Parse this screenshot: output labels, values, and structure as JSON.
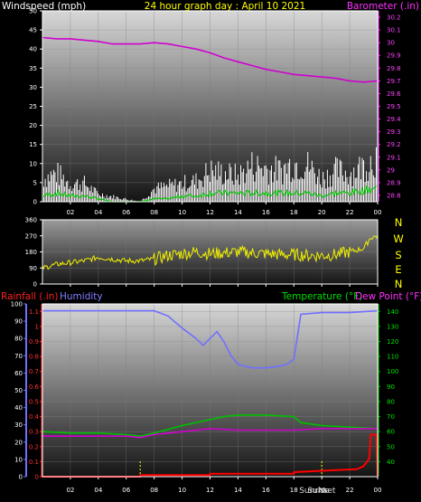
{
  "header": {
    "wind_label": "Windspeed (mph)",
    "title": "24 hour graph day : April 10 2021",
    "baro_label": "Barometer (.in)"
  },
  "lower_header": {
    "rain_label": "Rainfall (.in)",
    "hum_label": "Humidity",
    "temp_label": "Temperature (°F)",
    "dew_label": "Dew Point (°F)"
  },
  "compass": [
    "N",
    "W",
    "S",
    "E",
    "N"
  ],
  "sun_labels": {
    "sunrise": "Sunrise",
    "sunset": "Sunset"
  },
  "colors": {
    "wind_gust": "#ffffff",
    "wind_avg": "#00c800",
    "barometer": "#d000d0",
    "direction": "#f0f000",
    "humidity": "#7070ff",
    "temperature": "#00c000",
    "dew_point": "#d000d0",
    "rainfall": "#ff0000",
    "sun_marker": "#ffff00"
  },
  "chart_data": [
    {
      "type": "line",
      "name": "wind-barometer",
      "x_ticks": [
        "02",
        "04",
        "06",
        "08",
        "10",
        "12",
        "14",
        "16",
        "18",
        "20",
        "22",
        "00"
      ],
      "xlim": [
        0,
        24
      ],
      "y_left": {
        "label": "Windspeed (mph)",
        "ticks": [
          0,
          5,
          10,
          15,
          20,
          25,
          30,
          35,
          40,
          45,
          50
        ],
        "ylim": [
          0,
          50
        ]
      },
      "y_right": {
        "label": "Barometer (.in)",
        "ticks": [
          "28.8",
          "28.9",
          "29",
          "29.1",
          "29.2",
          "29.3",
          "29.4",
          "29.5",
          "29.6",
          "29.7",
          "29.8",
          "29.9",
          "30",
          "30.1",
          "30.2"
        ],
        "ylim": [
          28.75,
          30.25
        ]
      },
      "series": [
        {
          "name": "Barometer",
          "axis": "right",
          "x": [
            0,
            1,
            2,
            3,
            4,
            5,
            6,
            7,
            8,
            9,
            10,
            11,
            12,
            13,
            14,
            15,
            16,
            17,
            18,
            19,
            20,
            21,
            22,
            23,
            24
          ],
          "values": [
            30.04,
            30.03,
            30.03,
            30.02,
            30.01,
            29.99,
            29.99,
            29.99,
            30.0,
            29.99,
            29.97,
            29.95,
            29.92,
            29.88,
            29.85,
            29.82,
            29.79,
            29.77,
            29.75,
            29.74,
            29.73,
            29.72,
            29.7,
            29.69,
            29.7
          ]
        },
        {
          "name": "Wind gust",
          "axis": "left",
          "x": [
            0,
            1,
            2,
            3,
            4,
            5,
            6,
            7,
            8,
            9,
            10,
            11,
            12,
            13,
            14,
            15,
            16,
            17,
            18,
            19,
            20,
            21,
            22,
            23,
            24
          ],
          "values": [
            9,
            11,
            7,
            7,
            3,
            2,
            1,
            0,
            5,
            6,
            7,
            8,
            12,
            11,
            10,
            14,
            13,
            12,
            15,
            14,
            9,
            12,
            11,
            14,
            18
          ]
        },
        {
          "name": "Wind average",
          "axis": "left",
          "x": [
            0,
            1,
            2,
            3,
            4,
            5,
            6,
            7,
            8,
            9,
            10,
            11,
            12,
            13,
            14,
            15,
            16,
            17,
            18,
            19,
            20,
            21,
            22,
            23,
            24
          ],
          "values": [
            2,
            3,
            2,
            2,
            1,
            0,
            0,
            0,
            1,
            1,
            2,
            2,
            3,
            3,
            3,
            3,
            3,
            3,
            3,
            3,
            2,
            3,
            3,
            4,
            5
          ]
        }
      ]
    },
    {
      "type": "line",
      "name": "wind-direction",
      "x_ticks": [
        "02",
        "04",
        "06",
        "08",
        "10",
        "12",
        "14",
        "16",
        "18",
        "20",
        "22",
        "00"
      ],
      "xlim": [
        0,
        24
      ],
      "y_left": {
        "ticks": [
          0,
          90,
          180,
          270,
          360
        ],
        "ylim": [
          0,
          360
        ]
      },
      "series": [
        {
          "name": "Wind direction",
          "x": [
            0,
            1,
            2,
            3,
            4,
            5,
            6,
            7,
            8,
            9,
            10,
            11,
            12,
            13,
            14,
            15,
            16,
            17,
            18,
            19,
            20,
            21,
            22,
            23,
            23.5,
            24
          ],
          "values": [
            90,
            110,
            120,
            130,
            150,
            140,
            130,
            130,
            140,
            160,
            170,
            180,
            170,
            175,
            180,
            175,
            170,
            165,
            165,
            160,
            160,
            165,
            180,
            200,
            260,
            270
          ]
        }
      ]
    },
    {
      "type": "line",
      "name": "rain-humidity-temperature",
      "x_ticks": [
        "02",
        "04",
        "06",
        "08",
        "10",
        "12",
        "14",
        "16",
        "18",
        "20",
        "22",
        "00"
      ],
      "xlim": [
        0,
        24
      ],
      "y_rain": {
        "label": "Rainfall (.in)",
        "ticks": [
          "0",
          "0.1",
          "0.2",
          "0.3",
          "0.4",
          "0.5",
          "0.6",
          "0.7",
          "0.8",
          "0.9",
          "1",
          "1.1"
        ],
        "ylim": [
          0,
          1.15
        ]
      },
      "y_humidity": {
        "label": "Humidity",
        "ticks": [
          0,
          10,
          20,
          30,
          40,
          50,
          60,
          70,
          80,
          90,
          100
        ],
        "ylim": [
          0,
          100
        ]
      },
      "y_temp": {
        "label": "Temperature (°F)",
        "ticks": [
          40,
          50,
          60,
          70,
          80,
          90,
          100,
          110,
          120,
          130,
          140
        ],
        "ylim": [
          30,
          145
        ]
      },
      "sunrise_hour": 7,
      "sunset_hour": 20,
      "series": [
        {
          "name": "Humidity",
          "axis": "humidity",
          "x": [
            0,
            2,
            4,
            6,
            8,
            9,
            10,
            11,
            11.5,
            12,
            12.5,
            13,
            13.5,
            14,
            15,
            16,
            17,
            17.5,
            18,
            18.5,
            20,
            22,
            24
          ],
          "values": [
            96,
            96,
            96,
            96,
            96,
            93,
            86,
            80,
            76,
            80,
            84,
            78,
            70,
            65,
            63,
            63,
            64,
            65,
            68,
            94,
            95,
            95,
            96
          ]
        },
        {
          "name": "Temperature",
          "axis": "temp",
          "x": [
            0,
            2,
            4,
            6,
            7,
            8,
            10,
            12,
            13,
            14,
            16,
            18,
            18.5,
            20,
            22,
            24
          ],
          "values": [
            60,
            59,
            59,
            58,
            57,
            59,
            64,
            68,
            70,
            71,
            71,
            70,
            66,
            64,
            63,
            62
          ]
        },
        {
          "name": "Dew Point",
          "axis": "temp",
          "x": [
            0,
            2,
            4,
            6,
            7,
            8,
            10,
            12,
            14,
            16,
            18,
            20,
            22,
            24
          ],
          "values": [
            57,
            57,
            57,
            57,
            56,
            58,
            60,
            62,
            61,
            61,
            61,
            62,
            62,
            62
          ]
        },
        {
          "name": "Rainfall",
          "axis": "rain",
          "x": [
            0,
            7,
            7.01,
            12,
            12.01,
            18,
            18.01,
            22.5,
            23,
            23.4,
            23.5,
            23.9,
            24
          ],
          "values": [
            0,
            0,
            0.01,
            0.01,
            0.02,
            0.02,
            0.03,
            0.05,
            0.07,
            0.12,
            0.28,
            0.28,
            0
          ]
        }
      ]
    }
  ]
}
